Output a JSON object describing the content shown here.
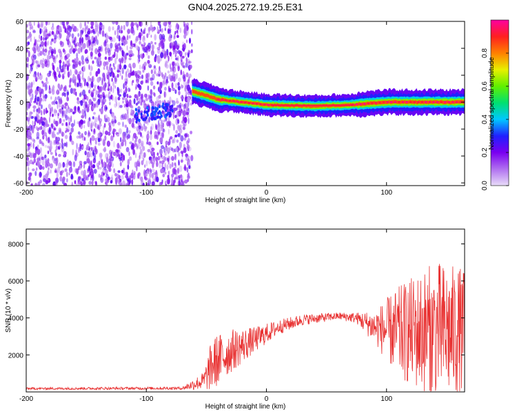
{
  "title": "GN04.2025.272.19.25.E31",
  "chart_data": [
    {
      "type": "heatmap",
      "xlabel": "Height of straight line (km)",
      "ylabel": "Frequency (Hz)",
      "xlim": [
        -200,
        165
      ],
      "ylim": [
        -62,
        60
      ],
      "xticks": [
        -200,
        -100,
        0,
        100
      ],
      "yticks": [
        -60,
        -40,
        -20,
        0,
        20,
        40,
        60
      ],
      "colorbar": {
        "label": "Normalized spectral amplitude",
        "range": [
          0.0,
          1.0
        ],
        "ticks": [
          0.0,
          0.2,
          0.4,
          0.6,
          0.8
        ],
        "colormap": [
          "#e8dcf8",
          "#b070f0",
          "#7a00f0",
          "#2020ff",
          "#00c8ff",
          "#00e070",
          "#60f000",
          "#e8f000",
          "#ff8000",
          "#ff2020",
          "#ff00a0"
        ]
      },
      "regions": [
        {
          "name": "noise",
          "x_range": [
            -200,
            -62
          ],
          "freq_range": [
            -62,
            60
          ],
          "amplitude": [
            0.05,
            0.25
          ]
        },
        {
          "name": "signal",
          "x_range": [
            -62,
            165
          ],
          "freq_center": [
            {
              "x": -62,
              "f": 8
            },
            {
              "x": -50,
              "f": 5
            },
            {
              "x": -40,
              "f": 2
            },
            {
              "x": -20,
              "f": 0
            },
            {
              "x": 0,
              "f": -2
            },
            {
              "x": 40,
              "f": -3
            },
            {
              "x": 70,
              "f": -2
            },
            {
              "x": 100,
              "f": 0
            },
            {
              "x": 130,
              "f": 0
            },
            {
              "x": 165,
              "f": 0
            }
          ]
        },
        {
          "name": "faint-blob",
          "x_range": [
            -110,
            -78
          ],
          "freq_center": -10,
          "amplitude": 0.25
        }
      ]
    },
    {
      "type": "line",
      "xlabel": "Height of straight line (km)",
      "ylabel": "SNR (10 * v/v)",
      "xlim": [
        -200,
        165
      ],
      "ylim": [
        0,
        8800
      ],
      "xticks": [
        -200,
        -100,
        0,
        100
      ],
      "yticks": [
        2000,
        4000,
        6000,
        8000
      ],
      "color": "#e83030",
      "envelope": [
        {
          "x": -200,
          "mean": 180,
          "spread": 60
        },
        {
          "x": -70,
          "mean": 200,
          "spread": 80
        },
        {
          "x": -52,
          "mean": 600,
          "spread": 500
        },
        {
          "x": -45,
          "mean": 1500,
          "spread": 1500
        },
        {
          "x": -30,
          "mean": 2200,
          "spread": 1200
        },
        {
          "x": -10,
          "mean": 2800,
          "spread": 700
        },
        {
          "x": 10,
          "mean": 3500,
          "spread": 400
        },
        {
          "x": 30,
          "mean": 3900,
          "spread": 300
        },
        {
          "x": 60,
          "mean": 4100,
          "spread": 200
        },
        {
          "x": 75,
          "mean": 4000,
          "spread": 300
        },
        {
          "x": 90,
          "mean": 3500,
          "spread": 900
        },
        {
          "x": 110,
          "mean": 3200,
          "spread": 2500
        },
        {
          "x": 140,
          "mean": 3300,
          "spread": 3800
        },
        {
          "x": 165,
          "mean": 3200,
          "spread": 3500
        }
      ]
    }
  ]
}
